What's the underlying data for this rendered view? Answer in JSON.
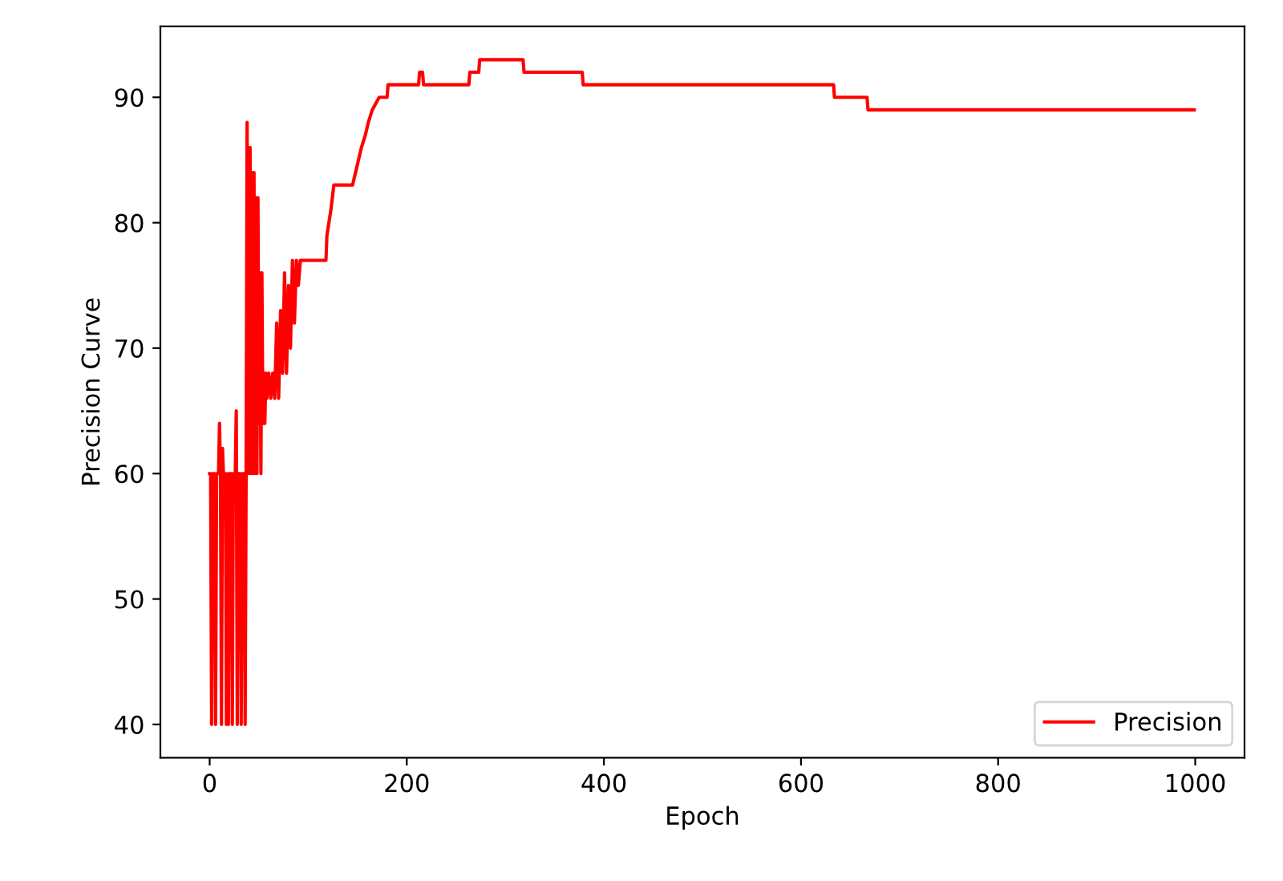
{
  "chart_data": {
    "type": "line",
    "xlabel": "Epoch",
    "ylabel": "Precision Curve",
    "xlim": [
      -50,
      1050
    ],
    "ylim": [
      37.35,
      95.65
    ],
    "xticks": [
      0,
      200,
      400,
      600,
      800,
      1000
    ],
    "yticks": [
      40,
      50,
      60,
      70,
      80,
      90
    ],
    "grid": false,
    "legend": "bottom right",
    "series": [
      {
        "name": "Precision",
        "color": "#ff0000",
        "x": [
          0,
          1,
          2,
          3,
          5,
          6,
          7,
          9,
          10,
          11,
          12,
          13,
          14,
          16,
          17,
          18,
          19,
          20,
          22,
          23,
          24,
          26,
          27,
          28,
          29,
          31,
          32,
          33,
          35,
          36,
          37,
          38,
          39,
          40,
          41,
          42,
          43,
          44,
          45,
          46,
          47,
          48,
          49,
          50,
          51,
          52,
          53,
          54,
          55,
          56,
          57,
          58,
          60,
          62,
          64,
          66,
          68,
          70,
          72,
          74,
          76,
          78,
          80,
          82,
          84,
          86,
          88,
          90,
          92,
          100,
          118,
          119,
          121,
          123,
          126,
          145,
          148,
          151,
          154,
          158,
          161,
          165,
          172,
          180,
          181,
          194,
          212,
          213,
          216,
          217,
          263,
          264,
          273,
          274,
          318,
          319,
          378,
          379,
          633,
          634,
          667,
          668,
          999
        ],
        "values": [
          60,
          60,
          40,
          60,
          60,
          40,
          60,
          60,
          64,
          60,
          40,
          62,
          60,
          60,
          40,
          60,
          40,
          60,
          60,
          40,
          60,
          60,
          65,
          40,
          60,
          60,
          40,
          60,
          60,
          40,
          60,
          88,
          60,
          60,
          86,
          60,
          84,
          60,
          84,
          60,
          82,
          60,
          82,
          64,
          76,
          60,
          76,
          64,
          68,
          64,
          68,
          66,
          68,
          66,
          68,
          66,
          72,
          66,
          73,
          68,
          76,
          68,
          75,
          70,
          77,
          72,
          77,
          75,
          77,
          77,
          77,
          79,
          80,
          81,
          83,
          83,
          84,
          85,
          86,
          87,
          88,
          89,
          90,
          90,
          91,
          91,
          91,
          92,
          92,
          91,
          91,
          92,
          92,
          93,
          93,
          92,
          92,
          91,
          91,
          90,
          90,
          89,
          89
        ]
      }
    ]
  }
}
